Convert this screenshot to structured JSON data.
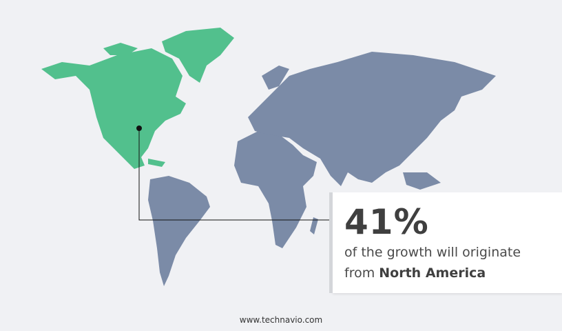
{
  "colors": {
    "highlight": "#52c08d",
    "other": "#7b8ba7",
    "background": "#f0f1f4"
  },
  "callout": {
    "percent": "41%",
    "text": "of the growth will originate",
    "prefix": "from",
    "region": "North America"
  },
  "footer": {
    "website": "www.technavio.com"
  }
}
